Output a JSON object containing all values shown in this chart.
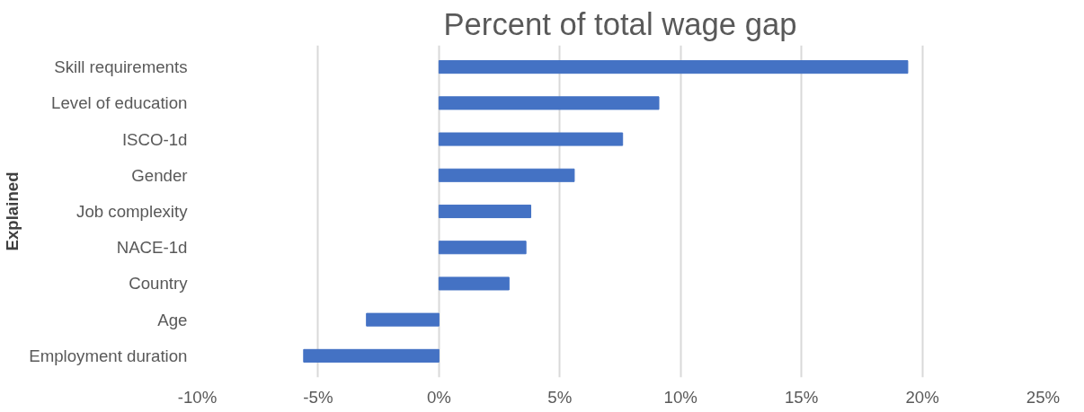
{
  "chart_data": {
    "type": "bar",
    "orientation": "horizontal",
    "title": "Percent of total wage gap",
    "ylabel": "Explained",
    "categories": [
      "Skill requirements",
      "Level of education",
      "ISCO-1d",
      "Gender",
      "Job complexity",
      "NACE-1d",
      "Country",
      "Age",
      "Employment duration"
    ],
    "values": [
      19.4,
      9.1,
      7.6,
      5.6,
      3.8,
      3.6,
      2.9,
      -3.0,
      -5.6
    ],
    "color": "#4472c4",
    "xlim": [
      -10,
      25
    ],
    "xticks": [
      {
        "value": -10,
        "label": "-10%"
      },
      {
        "value": -5,
        "label": "-5%"
      },
      {
        "value": 0,
        "label": "0%"
      },
      {
        "value": 5,
        "label": "5%"
      },
      {
        "value": 10,
        "label": "10%"
      },
      {
        "value": 15,
        "label": "15%"
      },
      {
        "value": 20,
        "label": "20%"
      },
      {
        "value": 25,
        "label": "25%"
      }
    ],
    "grid": "x"
  }
}
